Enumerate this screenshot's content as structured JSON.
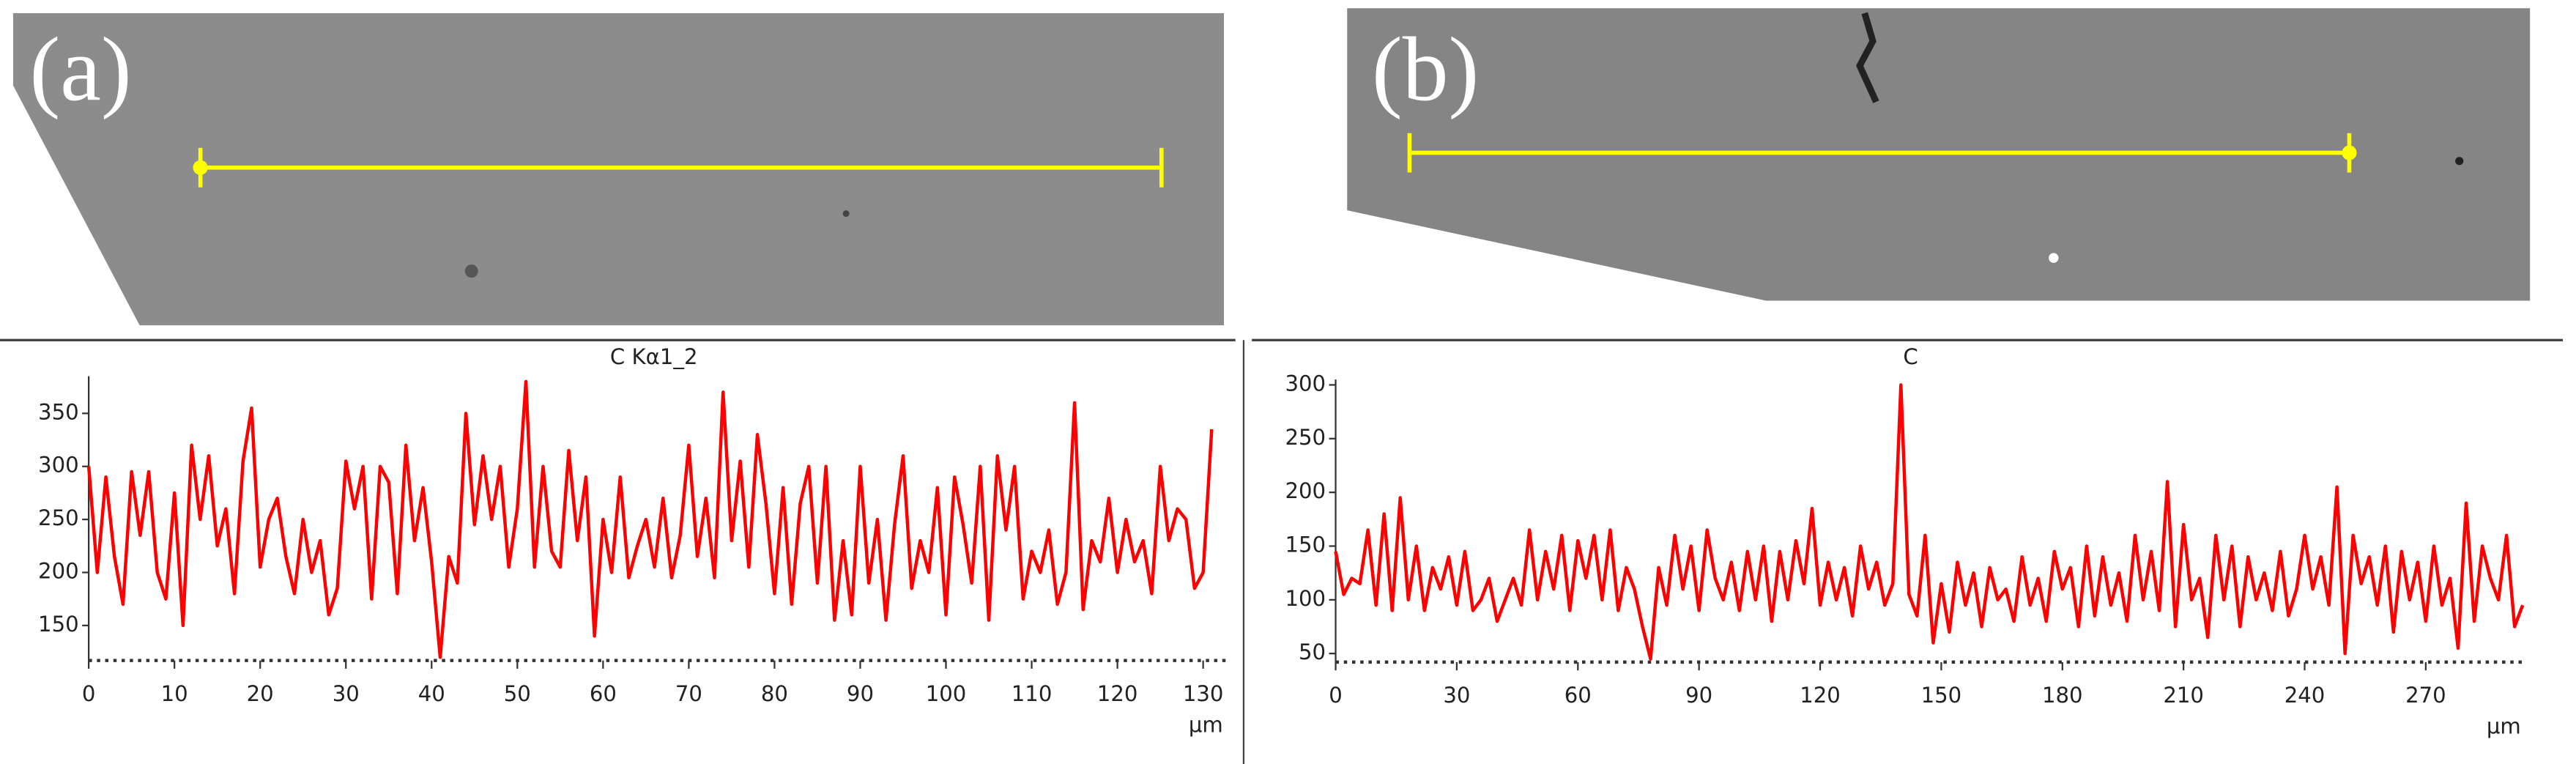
{
  "chart_data": [
    {
      "type": "line",
      "panel_label": "(a)",
      "title": "C Kα1_2",
      "x_label": "µm",
      "color": "#ff0000",
      "x": [
        0,
        1,
        2,
        3,
        4,
        5,
        6,
        7,
        8,
        9,
        10,
        11,
        12,
        13,
        14,
        15,
        16,
        17,
        18,
        19,
        20,
        21,
        22,
        23,
        24,
        25,
        26,
        27,
        28,
        29,
        30,
        31,
        32,
        33,
        34,
        35,
        36,
        37,
        38,
        39,
        40,
        41,
        42,
        43,
        44,
        45,
        46,
        47,
        48,
        49,
        50,
        51,
        52,
        53,
        54,
        55,
        56,
        57,
        58,
        59,
        60,
        61,
        62,
        63,
        64,
        65,
        66,
        67,
        68,
        69,
        70,
        71,
        72,
        73,
        74,
        75,
        76,
        77,
        78,
        79,
        80,
        81,
        82,
        83,
        84,
        85,
        86,
        87,
        88,
        89,
        90,
        91,
        92,
        93,
        94,
        95,
        96,
        97,
        98,
        99,
        100,
        101,
        102,
        103,
        104,
        105,
        106,
        107,
        108,
        109,
        110,
        111,
        112,
        113,
        114,
        115,
        116,
        117,
        118,
        119,
        120,
        121,
        122,
        123,
        124,
        125,
        126,
        127,
        128,
        129,
        130,
        131
      ],
      "values": [
        300,
        200,
        290,
        215,
        170,
        295,
        235,
        295,
        200,
        175,
        275,
        150,
        320,
        250,
        310,
        225,
        260,
        180,
        305,
        355,
        205,
        250,
        270,
        215,
        180,
        250,
        200,
        230,
        160,
        185,
        305,
        260,
        300,
        175,
        300,
        285,
        180,
        320,
        230,
        280,
        210,
        120,
        215,
        190,
        350,
        245,
        310,
        250,
        300,
        205,
        260,
        380,
        205,
        300,
        220,
        205,
        315,
        230,
        290,
        140,
        250,
        200,
        290,
        195,
        225,
        250,
        205,
        270,
        195,
        235,
        320,
        215,
        270,
        195,
        370,
        230,
        305,
        205,
        330,
        265,
        180,
        280,
        170,
        265,
        300,
        190,
        300,
        155,
        230,
        160,
        300,
        190,
        250,
        155,
        245,
        310,
        185,
        230,
        200,
        280,
        160,
        290,
        245,
        190,
        300,
        155,
        310,
        240,
        300,
        175,
        220,
        200,
        240,
        170,
        200,
        360,
        165,
        230,
        210,
        270,
        200,
        250,
        210,
        230,
        180,
        300,
        230,
        260,
        250,
        185,
        200,
        335
      ],
      "xlim": [
        0,
        133
      ],
      "ylim": [
        117,
        385
      ],
      "xticks": [
        0,
        10,
        20,
        30,
        40,
        50,
        60,
        70,
        80,
        90,
        100,
        110,
        120,
        130
      ],
      "yticks": [
        150,
        200,
        250,
        300,
        350
      ],
      "grid": false
    },
    {
      "type": "line",
      "panel_label": "(b)",
      "title": "C",
      "x_label": "µm",
      "color": "#ff0000",
      "x": [
        0,
        2,
        4,
        6,
        8,
        10,
        12,
        14,
        16,
        18,
        20,
        22,
        24,
        26,
        28,
        30,
        32,
        34,
        36,
        38,
        40,
        42,
        44,
        46,
        48,
        50,
        52,
        54,
        56,
        58,
        60,
        62,
        64,
        66,
        68,
        70,
        72,
        74,
        76,
        78,
        80,
        82,
        84,
        86,
        88,
        90,
        92,
        94,
        96,
        98,
        100,
        102,
        104,
        106,
        108,
        110,
        112,
        114,
        116,
        118,
        120,
        122,
        124,
        126,
        128,
        130,
        132,
        134,
        136,
        138,
        140,
        142,
        144,
        146,
        148,
        150,
        152,
        154,
        156,
        158,
        160,
        162,
        164,
        166,
        168,
        170,
        172,
        174,
        176,
        178,
        180,
        182,
        184,
        186,
        188,
        190,
        192,
        194,
        196,
        198,
        200,
        202,
        204,
        206,
        208,
        210,
        212,
        214,
        216,
        218,
        220,
        222,
        224,
        226,
        228,
        230,
        232,
        234,
        236,
        238,
        240,
        242,
        244,
        246,
        248,
        250,
        252,
        254,
        256,
        258,
        260,
        262,
        264,
        266,
        268,
        270,
        272,
        274,
        276,
        278,
        280,
        282,
        284,
        286,
        288,
        290,
        292,
        294
      ],
      "values": [
        145,
        105,
        120,
        115,
        165,
        95,
        180,
        90,
        195,
        100,
        150,
        90,
        130,
        110,
        140,
        95,
        145,
        90,
        100,
        120,
        80,
        100,
        120,
        95,
        165,
        100,
        145,
        110,
        160,
        90,
        155,
        120,
        160,
        100,
        165,
        90,
        130,
        110,
        75,
        45,
        130,
        95,
        160,
        110,
        150,
        90,
        165,
        120,
        100,
        135,
        90,
        145,
        100,
        150,
        80,
        145,
        100,
        155,
        115,
        185,
        95,
        135,
        100,
        130,
        85,
        150,
        110,
        135,
        95,
        115,
        300,
        105,
        85,
        160,
        60,
        115,
        70,
        135,
        95,
        125,
        75,
        130,
        100,
        110,
        80,
        140,
        95,
        120,
        80,
        145,
        110,
        130,
        75,
        150,
        85,
        140,
        95,
        125,
        80,
        160,
        100,
        145,
        90,
        210,
        75,
        170,
        100,
        120,
        65,
        160,
        100,
        150,
        75,
        140,
        100,
        125,
        90,
        145,
        85,
        110,
        160,
        110,
        140,
        95,
        205,
        50,
        160,
        115,
        140,
        95,
        150,
        70,
        145,
        100,
        135,
        80,
        150,
        95,
        120,
        55,
        190,
        80,
        150,
        120,
        100,
        160,
        75,
        95
      ],
      "xlim": [
        0,
        295
      ],
      "ylim": [
        42,
        305
      ],
      "xticks": [
        0,
        30,
        60,
        90,
        120,
        150,
        180,
        210,
        240,
        270
      ],
      "yticks": [
        50,
        100,
        150,
        200,
        250,
        300
      ],
      "grid": false
    }
  ]
}
